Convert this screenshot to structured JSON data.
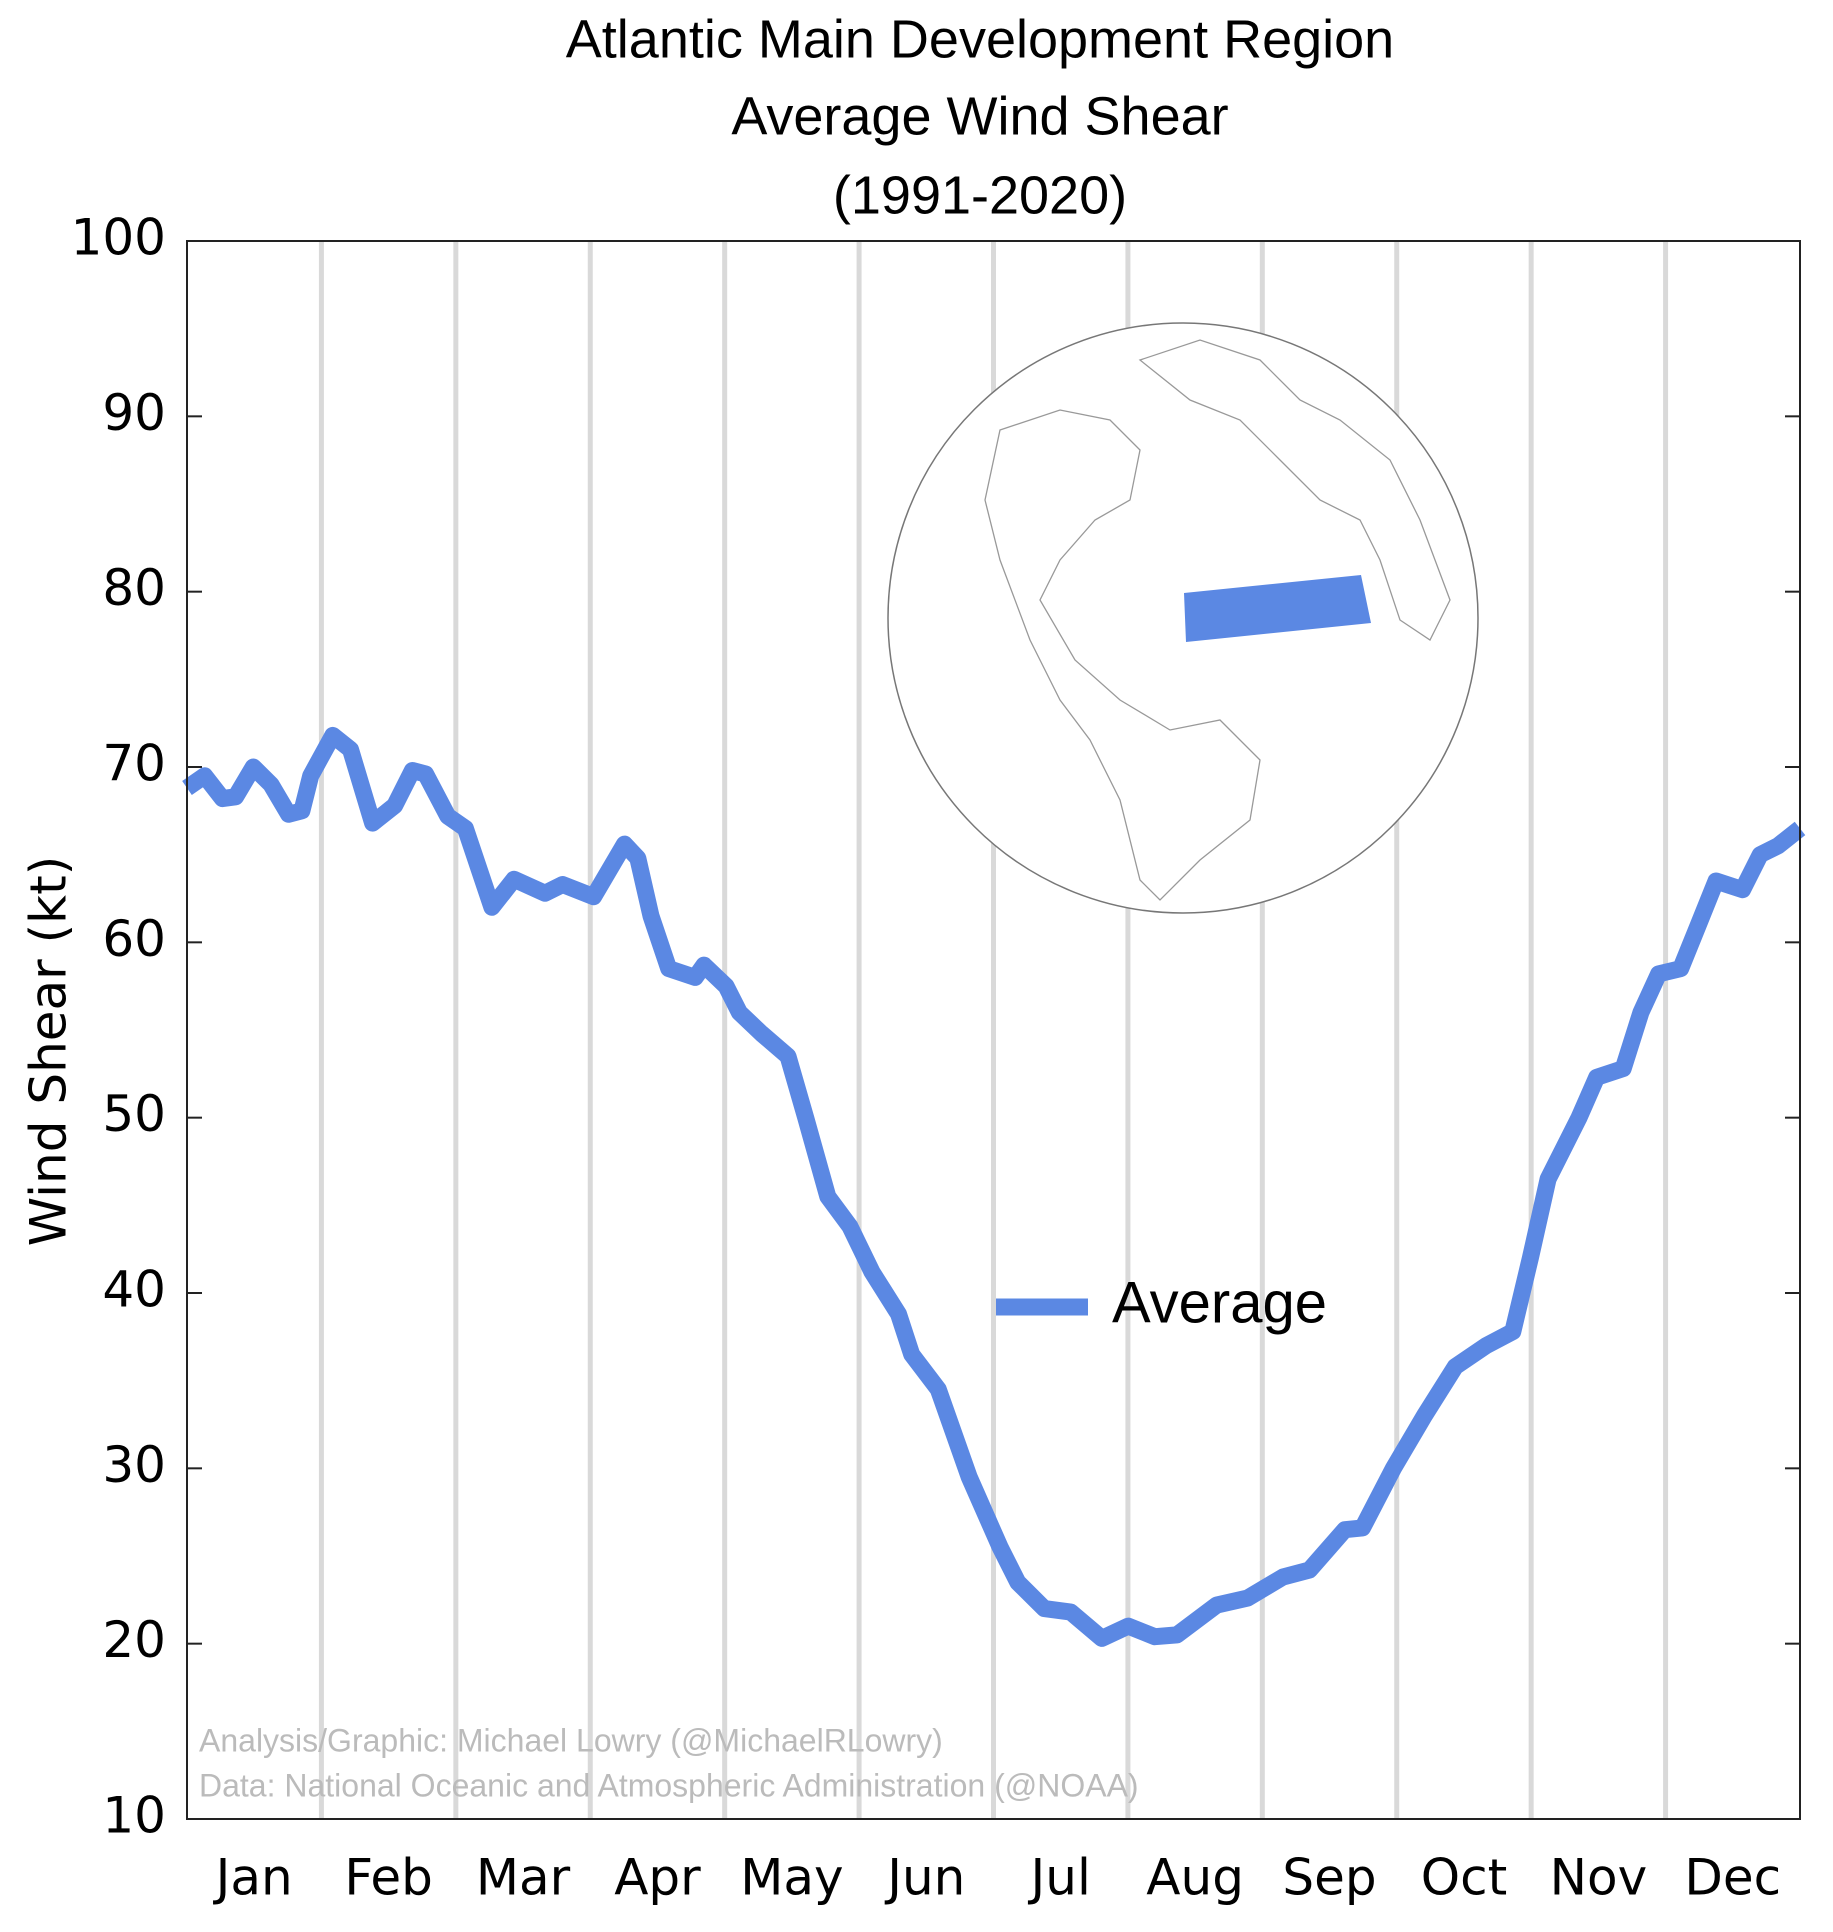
{
  "chart_data": {
    "type": "line",
    "title": [
      "Atlantic Main Development Region",
      "Average Wind Shear",
      "(1991-2020)"
    ],
    "ylabel": "Wind Shear (kt)",
    "credits": [
      "Analysis/Graphic: Michael Lowry (@MichaelRLowry)",
      "Data: National Oceanic and Atmospheric Administration (@NOAA)"
    ],
    "categories": [
      "Jan",
      "Feb",
      "Mar",
      "Apr",
      "May",
      "Jun",
      "Jul",
      "Aug",
      "Sep",
      "Oct",
      "Nov",
      "Dec"
    ],
    "x": [
      0,
      4,
      8,
      11,
      15,
      19,
      23,
      26,
      28,
      33,
      37,
      42,
      47,
      51,
      54,
      59,
      63,
      69,
      74,
      81,
      85,
      92,
      99,
      102,
      105,
      109,
      115,
      117,
      122,
      125,
      130,
      136,
      140,
      145,
      150,
      155,
      161,
      164,
      170,
      177,
      184,
      188,
      194,
      200,
      207,
      213,
      219,
      224,
      233,
      240,
      248,
      254,
      262,
      266,
      273,
      280,
      287,
      294,
      300,
      304,
      308,
      315,
      319,
      325,
      329,
      333,
      338,
      342,
      346,
      352,
      356,
      360,
      365
    ],
    "series": [
      {
        "name": "Average",
        "color": "#5b88e3",
        "values": [
          68.8,
          69.5,
          68.2,
          68.3,
          70,
          69,
          67.3,
          67.5,
          69.5,
          71.8,
          71,
          66.8,
          67.8,
          69.8,
          69.6,
          67.2,
          66.5,
          62,
          63.6,
          62.8,
          63.3,
          62.6,
          65.6,
          64.8,
          61.5,
          58.5,
          58,
          58.7,
          57.5,
          56,
          54.8,
          53.5,
          50,
          45.5,
          43.8,
          41.2,
          38.8,
          36.5,
          34.5,
          29.5,
          25.5,
          23.5,
          22,
          21.8,
          20.3,
          21,
          20.4,
          20.5,
          22.2,
          22.6,
          23.8,
          24.2,
          26.5,
          26.6,
          30,
          33,
          35.8,
          37,
          37.8,
          42,
          46.5,
          50,
          52.3,
          52.8,
          56,
          58.2,
          58.5,
          61,
          63.5,
          63,
          65,
          65.5,
          66.5
        ]
      }
    ],
    "xlim": [
      0,
      365
    ],
    "ylim": [
      10,
      100
    ],
    "yticks": [
      10,
      20,
      30,
      40,
      50,
      60,
      70,
      80,
      90,
      100
    ],
    "grid": true,
    "legend": "center"
  }
}
